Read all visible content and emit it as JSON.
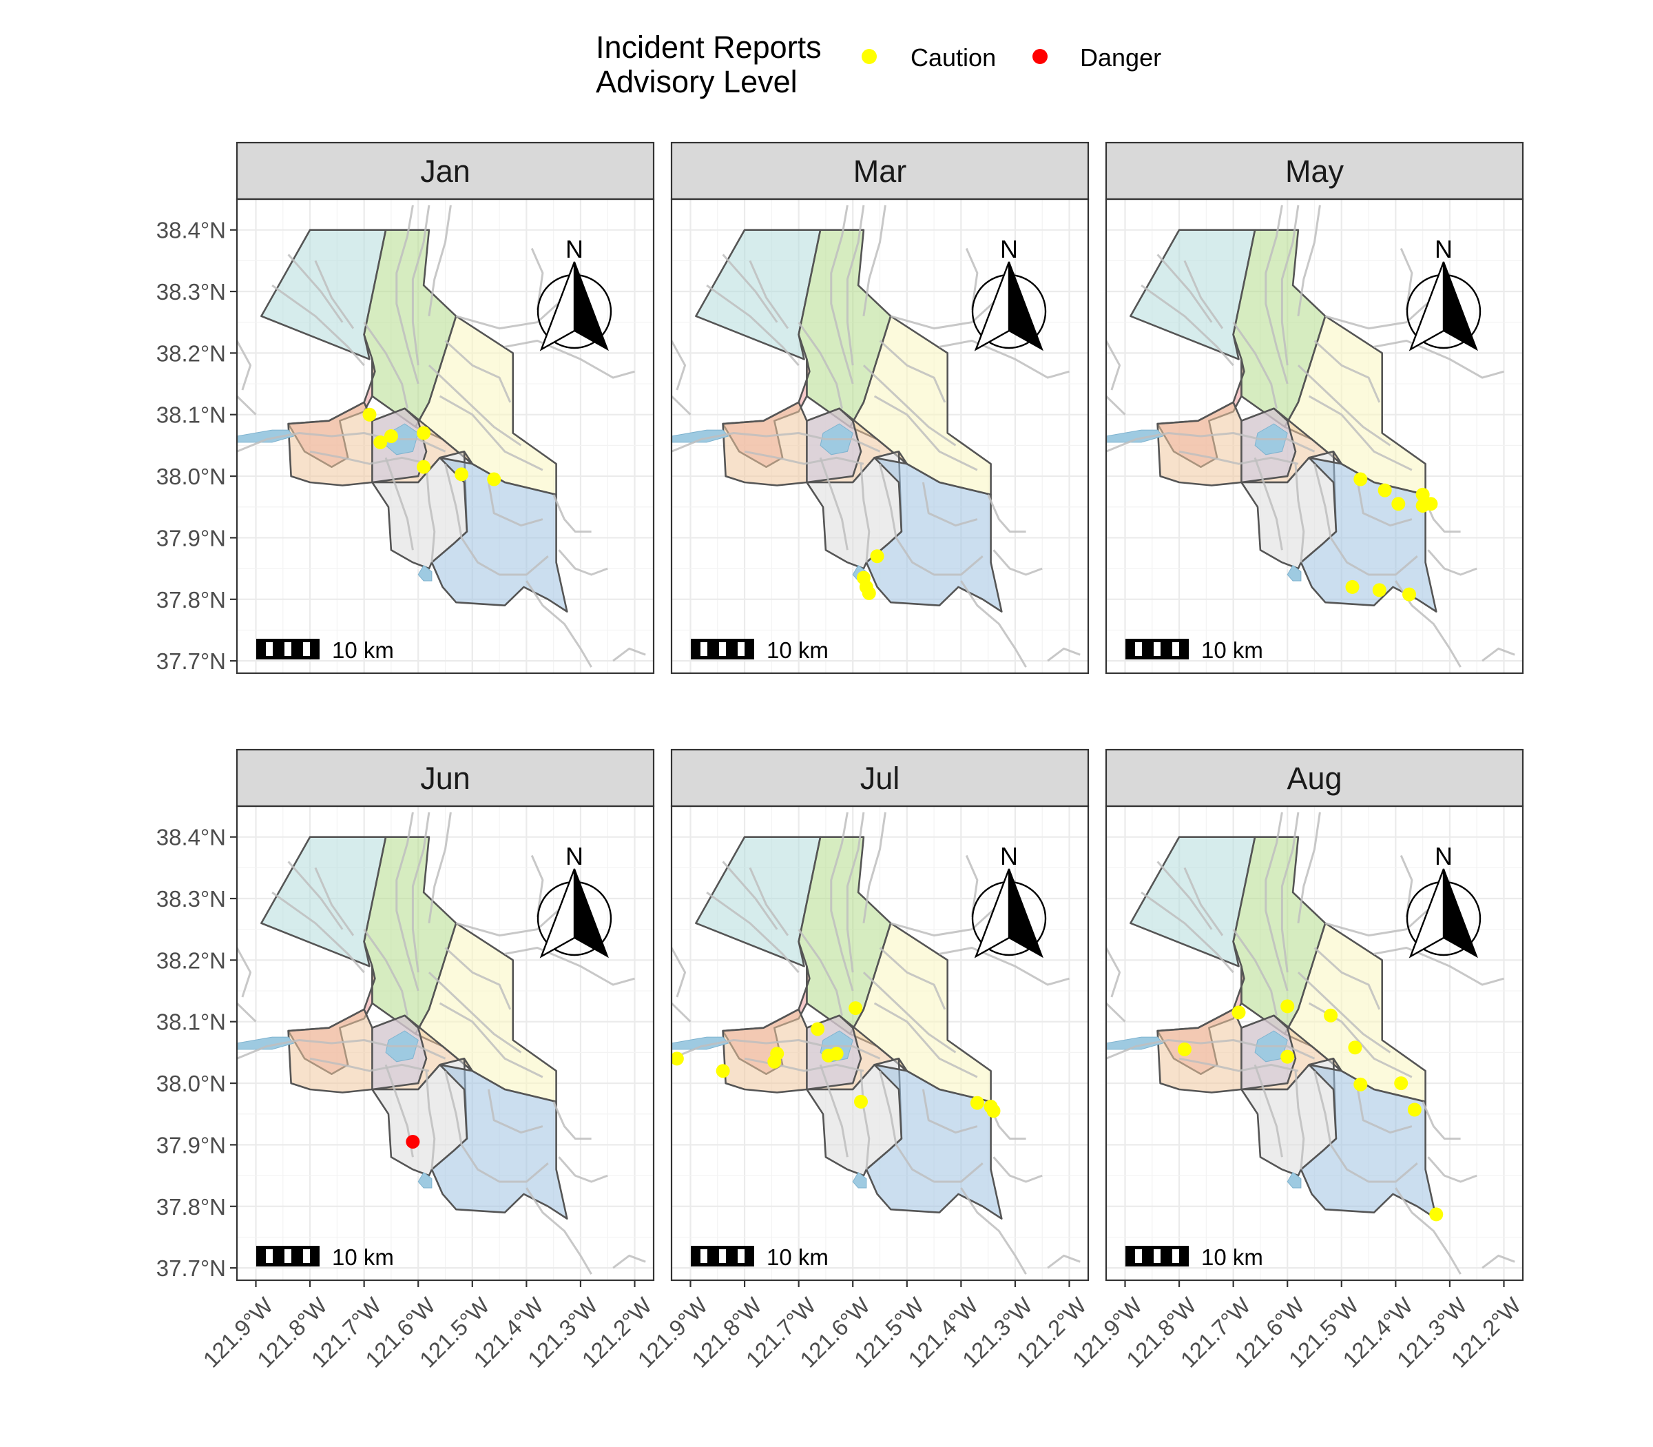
{
  "legend": {
    "title_line1": "Incident Reports",
    "title_line2": "Advisory Level",
    "items": [
      {
        "label": "Caution",
        "color": "#FFFF00"
      },
      {
        "label": "Danger",
        "color": "#FF0000"
      }
    ]
  },
  "axes": {
    "lat_ticks": [
      38.4,
      38.3,
      38.2,
      38.1,
      38.0,
      37.9,
      37.8,
      37.7
    ],
    "lat_labels": [
      "38.4°N",
      "38.3°N",
      "38.2°N",
      "38.1°N",
      "38.0°N",
      "37.9°N",
      "37.8°N",
      "37.7°N"
    ],
    "lon_ticks": [
      -121.9,
      -121.8,
      -121.7,
      -121.6,
      -121.5,
      -121.4,
      -121.3,
      -121.2
    ],
    "lon_labels": [
      "121.9°W",
      "121.8°W",
      "121.7°W",
      "121.6°W",
      "121.5°W",
      "121.4°W",
      "121.3°W",
      "121.2°W"
    ],
    "lon_range": [
      -121.935,
      -121.165
    ],
    "lat_range": [
      37.68,
      38.45
    ]
  },
  "map": {
    "north_label": "N",
    "scale_label": "10 km",
    "region_colors": [
      "#B4DCDC",
      "#B4DC8C",
      "#FAF5C0",
      "#F0A0A0",
      "#F0C8A0",
      "#C8C8E6",
      "#DCDCDC",
      "#A0C3E1"
    ],
    "water_color": "#9ECAE1",
    "river_color": "#BEBEBE"
  },
  "chart_data": {
    "type": "scatter",
    "x_label": "",
    "y_label": "",
    "xlim": [
      -121.935,
      -121.165
    ],
    "ylim": [
      37.68,
      38.45
    ],
    "grid": true,
    "legend_position": "top",
    "facets": [
      {
        "title": "Jan",
        "points": [
          {
            "lon": -121.69,
            "lat": 38.1,
            "level": "Caution"
          },
          {
            "lon": -121.67,
            "lat": 38.055,
            "level": "Caution"
          },
          {
            "lon": -121.65,
            "lat": 38.065,
            "level": "Caution"
          },
          {
            "lon": -121.59,
            "lat": 38.07,
            "level": "Caution"
          },
          {
            "lon": -121.59,
            "lat": 38.015,
            "level": "Caution"
          },
          {
            "lon": -121.52,
            "lat": 38.003,
            "level": "Caution"
          },
          {
            "lon": -121.46,
            "lat": 37.995,
            "level": "Caution"
          }
        ]
      },
      {
        "title": "Mar",
        "points": [
          {
            "lon": -121.555,
            "lat": 37.87,
            "level": "Caution"
          },
          {
            "lon": -121.58,
            "lat": 37.835,
            "level": "Caution"
          },
          {
            "lon": -121.575,
            "lat": 37.82,
            "level": "Caution"
          },
          {
            "lon": -121.57,
            "lat": 37.81,
            "level": "Caution"
          }
        ]
      },
      {
        "title": "May",
        "points": [
          {
            "lon": -121.465,
            "lat": 37.995,
            "level": "Caution"
          },
          {
            "lon": -121.42,
            "lat": 37.977,
            "level": "Caution"
          },
          {
            "lon": -121.395,
            "lat": 37.955,
            "level": "Caution"
          },
          {
            "lon": -121.35,
            "lat": 37.97,
            "level": "Caution"
          },
          {
            "lon": -121.35,
            "lat": 37.952,
            "level": "Caution"
          },
          {
            "lon": -121.335,
            "lat": 37.955,
            "level": "Caution"
          },
          {
            "lon": -121.48,
            "lat": 37.82,
            "level": "Caution"
          },
          {
            "lon": -121.43,
            "lat": 37.815,
            "level": "Caution"
          },
          {
            "lon": -121.375,
            "lat": 37.808,
            "level": "Caution"
          }
        ]
      },
      {
        "title": "Jun",
        "points": [
          {
            "lon": -121.61,
            "lat": 37.905,
            "level": "Danger"
          }
        ]
      },
      {
        "title": "Jul",
        "points": [
          {
            "lon": -121.925,
            "lat": 38.04,
            "level": "Caution"
          },
          {
            "lon": -121.84,
            "lat": 38.02,
            "level": "Caution"
          },
          {
            "lon": -121.745,
            "lat": 38.035,
            "level": "Caution"
          },
          {
            "lon": -121.74,
            "lat": 38.048,
            "level": "Caution"
          },
          {
            "lon": -121.665,
            "lat": 38.088,
            "level": "Caution"
          },
          {
            "lon": -121.645,
            "lat": 38.045,
            "level": "Caution"
          },
          {
            "lon": -121.63,
            "lat": 38.048,
            "level": "Caution"
          },
          {
            "lon": -121.595,
            "lat": 38.122,
            "level": "Caution"
          },
          {
            "lon": -121.585,
            "lat": 37.97,
            "level": "Caution"
          },
          {
            "lon": -121.37,
            "lat": 37.968,
            "level": "Caution"
          },
          {
            "lon": -121.345,
            "lat": 37.962,
            "level": "Caution"
          },
          {
            "lon": -121.34,
            "lat": 37.955,
            "level": "Caution"
          }
        ]
      },
      {
        "title": "Aug",
        "points": [
          {
            "lon": -121.79,
            "lat": 38.055,
            "level": "Caution"
          },
          {
            "lon": -121.69,
            "lat": 38.115,
            "level": "Caution"
          },
          {
            "lon": -121.6,
            "lat": 38.125,
            "level": "Caution"
          },
          {
            "lon": -121.52,
            "lat": 38.11,
            "level": "Caution"
          },
          {
            "lon": -121.6,
            "lat": 38.043,
            "level": "Caution"
          },
          {
            "lon": -121.475,
            "lat": 38.058,
            "level": "Caution"
          },
          {
            "lon": -121.465,
            "lat": 37.998,
            "level": "Caution"
          },
          {
            "lon": -121.39,
            "lat": 38.0,
            "level": "Caution"
          },
          {
            "lon": -121.365,
            "lat": 37.957,
            "level": "Caution"
          },
          {
            "lon": -121.325,
            "lat": 37.787,
            "level": "Caution"
          }
        ]
      }
    ]
  }
}
